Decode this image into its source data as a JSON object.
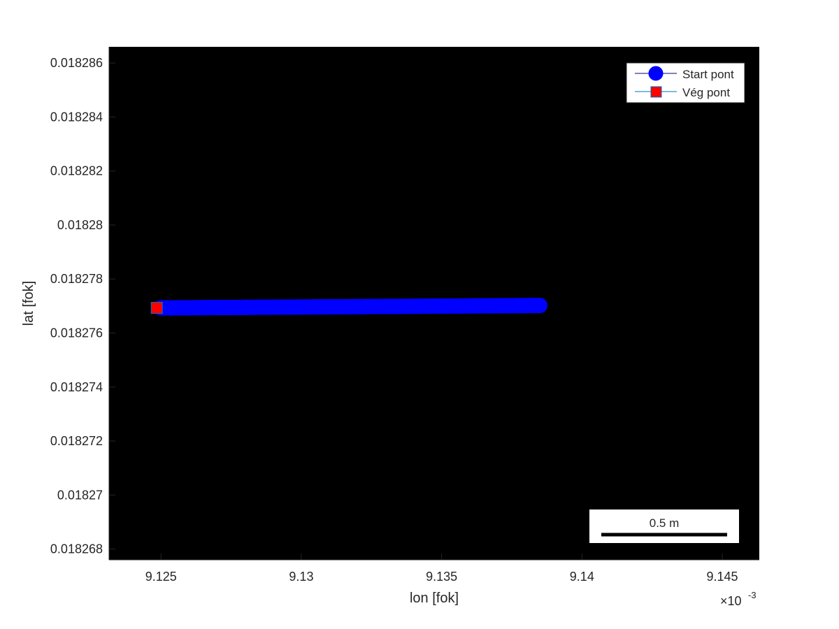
{
  "chart_data": {
    "type": "scatter",
    "xlabel": "lon [fok]",
    "ylabel": "lat [fok]",
    "x_exponent_label": "×10",
    "x_exponent": "-3",
    "xlim": [
      9.12315,
      9.14632
    ],
    "ylim": [
      0.0182676,
      0.0182866
    ],
    "x_ticks": [
      9.125,
      9.13,
      9.135,
      9.14,
      9.145
    ],
    "x_tick_labels": [
      "9.125",
      "9.13",
      "9.135",
      "9.14",
      "9.145"
    ],
    "y_ticks": [
      0.018268,
      0.01827,
      0.018272,
      0.018274,
      0.018276,
      0.018278,
      0.01828,
      0.018282,
      0.018284,
      0.018286
    ],
    "y_tick_labels": [
      "0.018268",
      "0.01827",
      "0.018272",
      "0.018274",
      "0.018276",
      "0.018278",
      "0.01828",
      "0.018282",
      "0.018284",
      "0.018286"
    ],
    "background": "#000000",
    "grid": false,
    "series": [
      {
        "name": "Start pont",
        "marker": "circle",
        "color": "#0000FF",
        "line_color": "#00008B",
        "x": [
          9.125,
          9.1265,
          9.128,
          9.1295,
          9.131,
          9.1325,
          9.134,
          9.1355,
          9.137,
          9.1385
        ],
        "y": [
          0.01827693,
          0.01827694,
          0.01827695,
          0.01827696,
          0.01827697,
          0.01827698,
          0.01827699,
          0.018277,
          0.01827701,
          0.01827702
        ]
      },
      {
        "name": "Vég pont",
        "marker": "square",
        "color": "#FF0000",
        "line_color": "#0072BD",
        "x": [
          9.12485
        ],
        "y": [
          0.01827693
        ]
      }
    ],
    "legend_position": "top-right",
    "scalebar": {
      "label": "0.5 m",
      "position": "bottom-right"
    }
  }
}
